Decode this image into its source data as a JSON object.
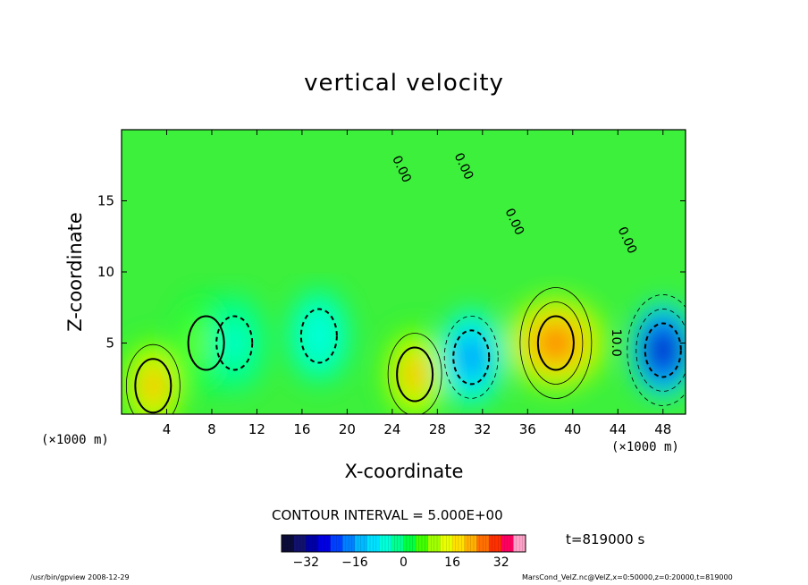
{
  "chart_data": {
    "type": "heatmap",
    "title": "vertical velocity",
    "xlabel": "X-coordinate",
    "ylabel": "Z-coordinate",
    "x_unit_left": "(×1000 m)",
    "x_unit_right": "(×1000 m)",
    "xlim": [
      0,
      50
    ],
    "ylim": [
      0,
      20
    ],
    "x_ticks": [
      4,
      8,
      12,
      16,
      20,
      24,
      28,
      32,
      36,
      40,
      44,
      48
    ],
    "y_ticks": [
      5,
      10,
      15
    ],
    "contour_interval_text": "CONTOUR INTERVAL = 5.000E+00",
    "time_text": "t=819000 s",
    "colorbar": {
      "min": -40,
      "max": 40,
      "ticks": [
        -32,
        -16,
        0,
        16,
        32
      ],
      "colors": [
        "#0b0b3a",
        "#11116e",
        "#0000a8",
        "#0000e0",
        "#0040ff",
        "#0080ff",
        "#00b8ff",
        "#00e0ff",
        "#00ffd8",
        "#00ff90",
        "#00ff40",
        "#40ff00",
        "#a0ff00",
        "#e8ff00",
        "#ffe000",
        "#ffb000",
        "#ff7000",
        "#ff3000",
        "#ff0060",
        "#ffa0c8"
      ]
    },
    "contour_labels": [
      "0.00",
      "0.00",
      "0.00",
      "0.00",
      "10.0"
    ],
    "extrema": [
      {
        "x": 2.8,
        "z": 2.0,
        "w": 20
      },
      {
        "x": 7.5,
        "z": 5.0,
        "w": 8
      },
      {
        "x": 10.0,
        "z": 5.0,
        "w": -6
      },
      {
        "x": 17.5,
        "z": 5.5,
        "w": -8
      },
      {
        "x": 26.0,
        "z": 2.8,
        "w": 22
      },
      {
        "x": 31.0,
        "z": 4.0,
        "w": -17
      },
      {
        "x": 38.5,
        "z": 5.0,
        "w": 26
      },
      {
        "x": 48.0,
        "z": 4.5,
        "w": -32
      }
    ]
  },
  "footer": {
    "left": "/usr/bin/gpview   2008-12-29",
    "right": "MarsCond_VelZ.nc@VelZ,x=0:50000,z=0:20000,t=819000"
  }
}
